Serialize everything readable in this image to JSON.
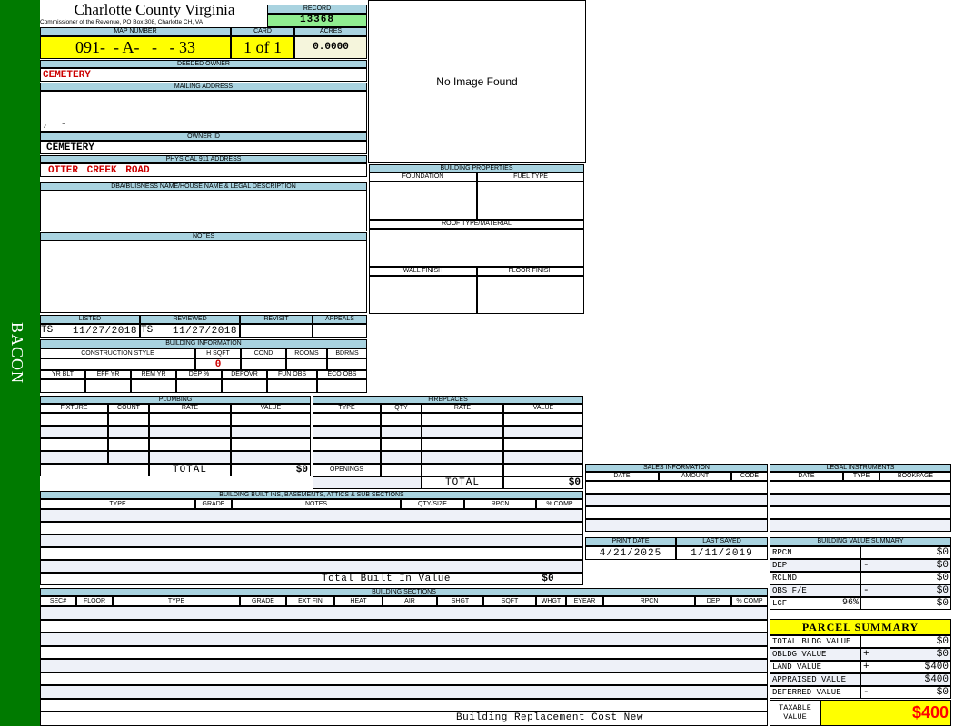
{
  "sidebar": {
    "label": "BACON"
  },
  "header": {
    "title": "Charlotte County Virginia",
    "subtitle": "Commissioner of the Revenue, PO Box 308, Charlotte CH, VA"
  },
  "record": {
    "label": "RECORD",
    "value": "13368"
  },
  "map": {
    "label": "MAP NUMBER",
    "value": "091-  - A-   -   - 33"
  },
  "card": {
    "label": "CARD",
    "value": "1 of 1"
  },
  "acres": {
    "label": "ACRES",
    "value": "0.0000"
  },
  "deeded_owner": {
    "label": "DEEDED OWNER",
    "value": "CEMETERY"
  },
  "mailing_address": {
    "label": "MAILING ADDRESS",
    "value": ",  -"
  },
  "owner_id": {
    "label": "OWNER ID",
    "value": "CEMETERY"
  },
  "physical_address": {
    "label": "PHYSICAL 911 ADDRESS",
    "value": "OTTER CREEK ROAD"
  },
  "image": {
    "text": "No Image Found"
  },
  "dba": {
    "label": "DBA/BUISNESS NAME/HOUSE NAME & LEGAL DESCRIPTION"
  },
  "notes": {
    "label": "NOTES"
  },
  "building_properties": {
    "label": "BUILDING PROPERTIES",
    "foundation": "FOUNDATION",
    "fuel_type": "FUEL TYPE",
    "roof": "ROOF TYPE/MATERIAL",
    "wall": "WALL FINISH",
    "floor": "FLOOR FINISH"
  },
  "review": {
    "listed": {
      "label": "LISTED",
      "by": "TS",
      "date": "11/27/2018"
    },
    "reviewed": {
      "label": "REVIEWED",
      "by": "TS",
      "date": "11/27/2018"
    },
    "revisit": {
      "label": "REVISIT"
    },
    "appeals": {
      "label": "APPEALS"
    }
  },
  "building_info": {
    "label": "BUILDING INFORMATION",
    "row1": [
      "CONSTRUCTION STYLE",
      "H SQFT",
      "COND",
      "ROOMS",
      "BDRMS"
    ],
    "hsqft": "0",
    "row2": [
      "YR BLT",
      "EFF YR",
      "REM YR",
      "DEP %",
      "DEPOVR",
      "FUN OBS",
      "ECO OBS"
    ]
  },
  "plumbing": {
    "label": "PLUMBING",
    "columns": [
      "FIXTURE",
      "COUNT",
      "RATE",
      "VALUE"
    ],
    "total_label": "TOTAL",
    "total": "$0"
  },
  "fireplaces": {
    "label": "FIREPLACES",
    "columns": [
      "TYPE",
      "QTY",
      "RATE",
      "VALUE"
    ],
    "openings": "OPENINGS",
    "total_label": "TOTAL",
    "total": "$0"
  },
  "built_ins": {
    "label": "BUILDING BUILT INS, BASEMENTS, ATTICS & SUB SECTIONS",
    "columns": [
      "TYPE",
      "GRADE",
      "NOTES",
      "QTY/SIZE",
      "RPCN",
      "% COMP"
    ],
    "total_label": "Total Built In Value",
    "total": "$0"
  },
  "sections": {
    "label": "BUILDING SECTIONS",
    "columns": [
      "SEC#",
      "FLOOR",
      "TYPE",
      "GRADE",
      "EXT FIN",
      "HEAT",
      "AIR",
      "SHGT",
      "SQFT",
      "WHGT",
      "EYEAR",
      "RPCN",
      "DEP",
      "% COMP"
    ],
    "footer": "Building Replacement Cost New"
  },
  "sales": {
    "label": "SALES INFORMATION",
    "columns": [
      "DATE",
      "AMOUNT",
      "CODE"
    ]
  },
  "legal": {
    "label": "LEGAL INSTRUMENTS",
    "columns": [
      "DATE",
      "TYPE",
      "BOOKPAGE"
    ]
  },
  "dates": {
    "print_label": "PRINT DATE",
    "print_value": "4/21/2025",
    "saved_label": "LAST SAVED",
    "saved_value": "1/11/2019"
  },
  "value_summary": {
    "label": "BUILDING VALUE SUMMARY",
    "rows": [
      {
        "label": "RPCN",
        "sign": "",
        "value": "$0"
      },
      {
        "label": "DEP",
        "sign": "-",
        "value": "$0"
      },
      {
        "label": "RCLND",
        "sign": "",
        "value": "$0"
      },
      {
        "label": "OBS F/E",
        "sign": "-",
        "value": "$0"
      },
      {
        "label": "LCF",
        "extra": "96%",
        "sign": "",
        "value": "$0"
      }
    ]
  },
  "parcel_summary": {
    "label": "PARCEL SUMMARY",
    "rows": [
      {
        "label": "TOTAL BLDG VALUE",
        "sign": "",
        "value": "$0"
      },
      {
        "label": "OBLDG VALUE",
        "sign": "+",
        "value": "$0"
      },
      {
        "label": "LAND VALUE",
        "sign": "+",
        "value": "$400"
      },
      {
        "label": "APPRAISED VALUE",
        "sign": "",
        "value": "$400"
      },
      {
        "label": "DEFERRED VALUE",
        "sign": "-",
        "value": "$0"
      }
    ],
    "taxable_label": "TAXABLE VALUE",
    "taxable_value": "$400"
  },
  "colors": {
    "sidebar": "#007a00",
    "header": "#a9d3e0",
    "highlight": "#ffff00",
    "record": "#90ee90",
    "accent_red": "#cc0000"
  }
}
